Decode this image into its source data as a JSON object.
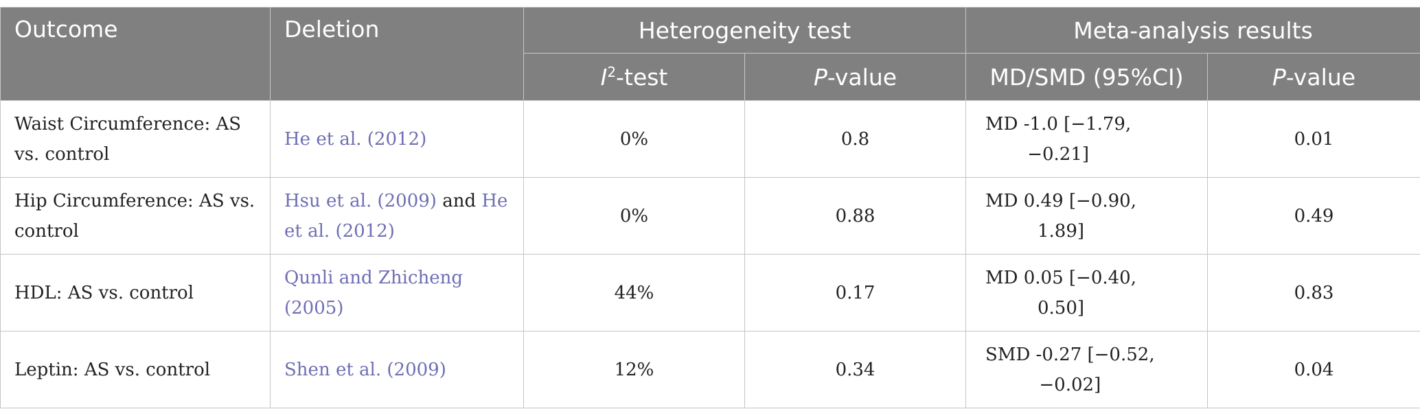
{
  "header": {
    "outcome": "Outcome",
    "deletion": "Deletion",
    "heterogeneity_test": "Heterogeneity test",
    "meta_analysis_results": "Meta-analysis results",
    "i2_test_italic": "I",
    "i2_test_sup": "2",
    "i2_test_rest": "-test",
    "p_italic": "P",
    "p_rest": "-value",
    "md_smd": "MD/SMD (95%CI)",
    "p2_italic": "P",
    "p2_rest": "-value"
  },
  "rows": [
    {
      "outcome": "Waist Circumference: AS vs. control",
      "deletion": [
        {
          "text": "He et al. (2012)",
          "link": true
        }
      ],
      "i2": "0%",
      "p_het": "0.8",
      "ci_line1": "MD -1.0 [−1.79,",
      "ci_line2": "−0.21]",
      "p_meta": "0.01"
    },
    {
      "outcome": "Hip Circumference: AS vs. control",
      "deletion": [
        {
          "text": "Hsu et al. (2009)",
          "link": true
        },
        {
          "text": " and ",
          "link": false
        },
        {
          "text": "He et al. (2012)",
          "link": true
        }
      ],
      "i2": "0%",
      "p_het": "0.88",
      "ci_line1": "MD 0.49 [−0.90,",
      "ci_line2": "1.89]",
      "p_meta": "0.49"
    },
    {
      "outcome": "HDL: AS vs. control",
      "deletion": [
        {
          "text": "Qunli and Zhicheng (2005)",
          "link": true
        }
      ],
      "i2": "44%",
      "p_het": "0.17",
      "ci_line1": "MD 0.05 [−0.40,",
      "ci_line2": "0.50]",
      "p_meta": "0.83"
    },
    {
      "outcome": "Leptin: AS vs. control",
      "deletion": [
        {
          "text": "Shen et al. (2009)",
          "link": true
        }
      ],
      "i2": "12%",
      "p_het": "0.34",
      "ci_line1": "SMD -0.27 [−0.52,",
      "ci_line2": "−0.02]",
      "p_meta": "0.04"
    }
  ],
  "colors": {
    "header_bg": "#808080",
    "header_text": "#ffffff",
    "link": "#6e6eb4",
    "text": "#222222",
    "border": "#c4c4c4"
  }
}
